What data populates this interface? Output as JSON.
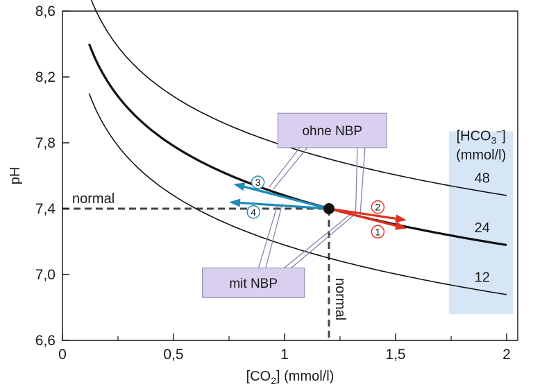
{
  "chart_data": {
    "type": "line",
    "title": "",
    "xlabel": "[CO",
    "xlabel_sub": "2",
    "xlabel_tail": "] (mmol/l)",
    "ylabel": "pH",
    "xlim": [
      0,
      2.05
    ],
    "ylim": [
      6.6,
      8.6
    ],
    "x_ticks": [
      {
        "value": 0,
        "label": "0"
      },
      {
        "value": 0.5,
        "label": "0,5"
      },
      {
        "value": 1,
        "label": "1"
      },
      {
        "value": 1.5,
        "label": "1,5"
      },
      {
        "value": 2,
        "label": "2"
      }
    ],
    "y_ticks": [
      {
        "value": 6.6,
        "label": "6,6"
      },
      {
        "value": 7.0,
        "label": "7,0"
      },
      {
        "value": 7.4,
        "label": "7,4"
      },
      {
        "value": 7.8,
        "label": "7,8"
      },
      {
        "value": 8.2,
        "label": "8,2"
      },
      {
        "value": 8.6,
        "label": "8,6"
      }
    ],
    "isopleths_title_line1": "[HCO",
    "isopleths_title_sub": "3",
    "isopleths_title_sup": "–",
    "isopleths_title_tail": "]",
    "isopleths_title_line2": "(mmol/l)",
    "isopleths": [
      {
        "name": "48",
        "bicarbonate": 48,
        "x_start": 0.12,
        "x_end": 2.0,
        "bold": false
      },
      {
        "name": "24",
        "bicarbonate": 24,
        "x_start": 0.12,
        "x_end": 2.0,
        "bold": true
      },
      {
        "name": "12",
        "bicarbonate": 12,
        "x_start": 0.12,
        "x_end": 2.0,
        "bold": false
      }
    ],
    "normal_point": {
      "x": 1.2,
      "y": 7.4
    },
    "normal_h_label": "normal",
    "normal_v_label": "normal",
    "arrows": [
      {
        "label": "1",
        "from": [
          1.2,
          7.4
        ],
        "to": [
          1.55,
          7.28
        ],
        "color": "#e03020"
      },
      {
        "label": "2",
        "from": [
          1.2,
          7.4
        ],
        "to": [
          1.55,
          7.33
        ],
        "color": "#e03020"
      },
      {
        "label": "3",
        "from": [
          1.2,
          7.4
        ],
        "to": [
          0.77,
          7.55
        ],
        "color": "#1f8ab8"
      },
      {
        "label": "4",
        "from": [
          1.2,
          7.4
        ],
        "to": [
          0.75,
          7.44
        ],
        "color": "#1f8ab8"
      }
    ],
    "callouts": [
      {
        "text": "ohne NBP",
        "points_to_arrows": [
          "1",
          "3"
        ]
      },
      {
        "text": "mit NBP",
        "points_to_arrows": [
          "2",
          "4"
        ]
      }
    ],
    "colors": {
      "red": "#e03020",
      "blue": "#1f8ab8",
      "callout_fill": "#d9d0f0",
      "panel_fill": "#d7e6f7",
      "axis": "#1a1a1a"
    }
  }
}
